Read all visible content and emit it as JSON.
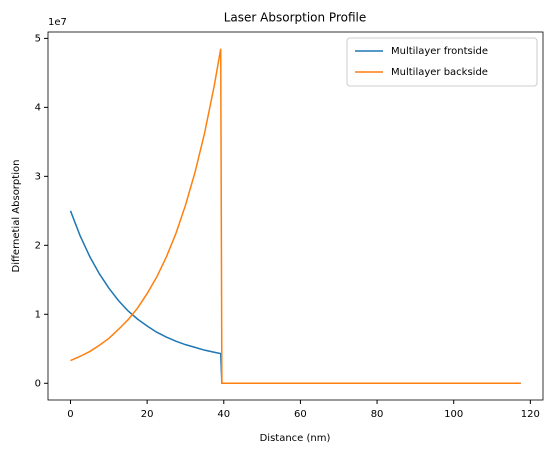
{
  "chart_data": {
    "type": "line",
    "title": "Laser Absorption Profile",
    "x_label": "Distance (nm)",
    "y_label": "Differnetial Absorption",
    "y_offset_text": "1e7",
    "x": [
      0,
      2.5,
      5,
      7.5,
      10,
      12.5,
      15,
      17.5,
      20,
      22.5,
      25,
      27.5,
      30,
      32.5,
      35,
      37.5,
      39.2,
      39.5,
      117.5
    ],
    "series": [
      {
        "name": "Multilayer frontside",
        "color": "#1f77b4",
        "values": [
          25000000,
          21400000,
          18400000,
          15900000,
          13800000,
          12000000,
          10500000,
          9300000,
          8300000,
          7400000,
          6700000,
          6100000,
          5600000,
          5200000,
          4800000,
          4500000,
          4300000,
          0,
          0
        ]
      },
      {
        "name": "Multilayer backside",
        "color": "#ff7f0e",
        "values": [
          3300000,
          3900000,
          4600000,
          5500000,
          6500000,
          7800000,
          9200000,
          10900000,
          13000000,
          15400000,
          18300000,
          21700000,
          25800000,
          30600000,
          36300000,
          43100000,
          48500000,
          0,
          0
        ]
      }
    ],
    "xlim": [
      -5.87,
      123.3
    ],
    "ylim": [
      -2425000,
      50925000
    ],
    "xticks": [
      0,
      20,
      40,
      60,
      80,
      100,
      120
    ],
    "yticks": [
      {
        "value": 0,
        "label": "0"
      },
      {
        "value": 10000000,
        "label": "1"
      },
      {
        "value": 20000000,
        "label": "2"
      },
      {
        "value": 30000000,
        "label": "3"
      },
      {
        "value": 40000000,
        "label": "4"
      },
      {
        "value": 50000000,
        "label": "5"
      }
    ],
    "legend": "upper right",
    "grid": false
  }
}
